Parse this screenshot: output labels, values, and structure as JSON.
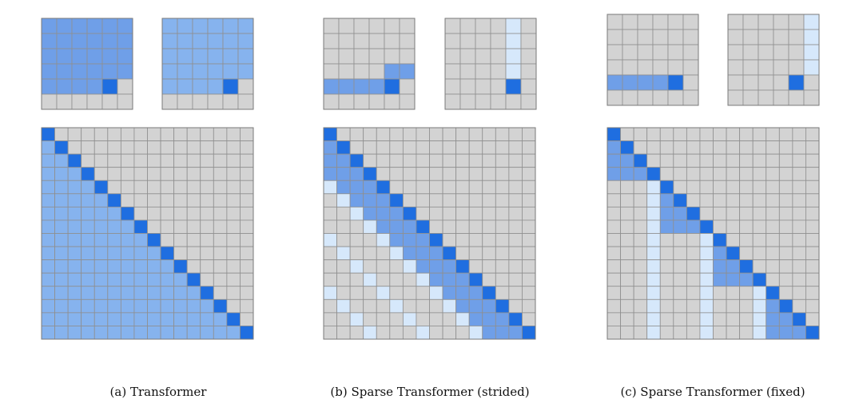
{
  "colors": {
    "empty": "#d3d3d3",
    "attended": "#6f9fe8",
    "attended_light": "#86b3ee",
    "attended_pale": "#d6e8fb",
    "current": "#1f6ee0",
    "gridline": "#8f8f8f"
  },
  "panels": [
    {
      "id": "a",
      "pattern": "full",
      "caption": "(a)  Transformer"
    },
    {
      "id": "b",
      "pattern": "strided",
      "stride": 4,
      "caption": "(b)  Sparse Transformer (strided)"
    },
    {
      "id": "c",
      "pattern": "fixed",
      "block": 4,
      "caption": "(c)  Sparse Transformer (fixed)"
    }
  ]
}
